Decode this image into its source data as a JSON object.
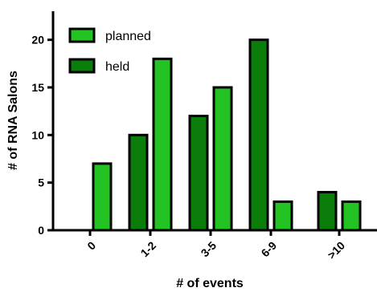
{
  "chart_data": {
    "type": "bar",
    "categories": [
      "0",
      "1-2",
      "3-5",
      "6-9",
      ">10"
    ],
    "series": [
      {
        "name": "held",
        "values": [
          0,
          10,
          12,
          20,
          4
        ],
        "color": "#0a7d0a"
      },
      {
        "name": "planned",
        "values": [
          7,
          18,
          15,
          3,
          3
        ],
        "color": "#22c322"
      }
    ],
    "legend_order": [
      "planned",
      "held"
    ],
    "xlabel": "# of events",
    "ylabel": "# of RNA Salons",
    "ylim": [
      0,
      23
    ],
    "yticks": [
      0,
      5,
      10,
      15,
      20
    ],
    "grid": false,
    "legend_position": "top-left"
  }
}
